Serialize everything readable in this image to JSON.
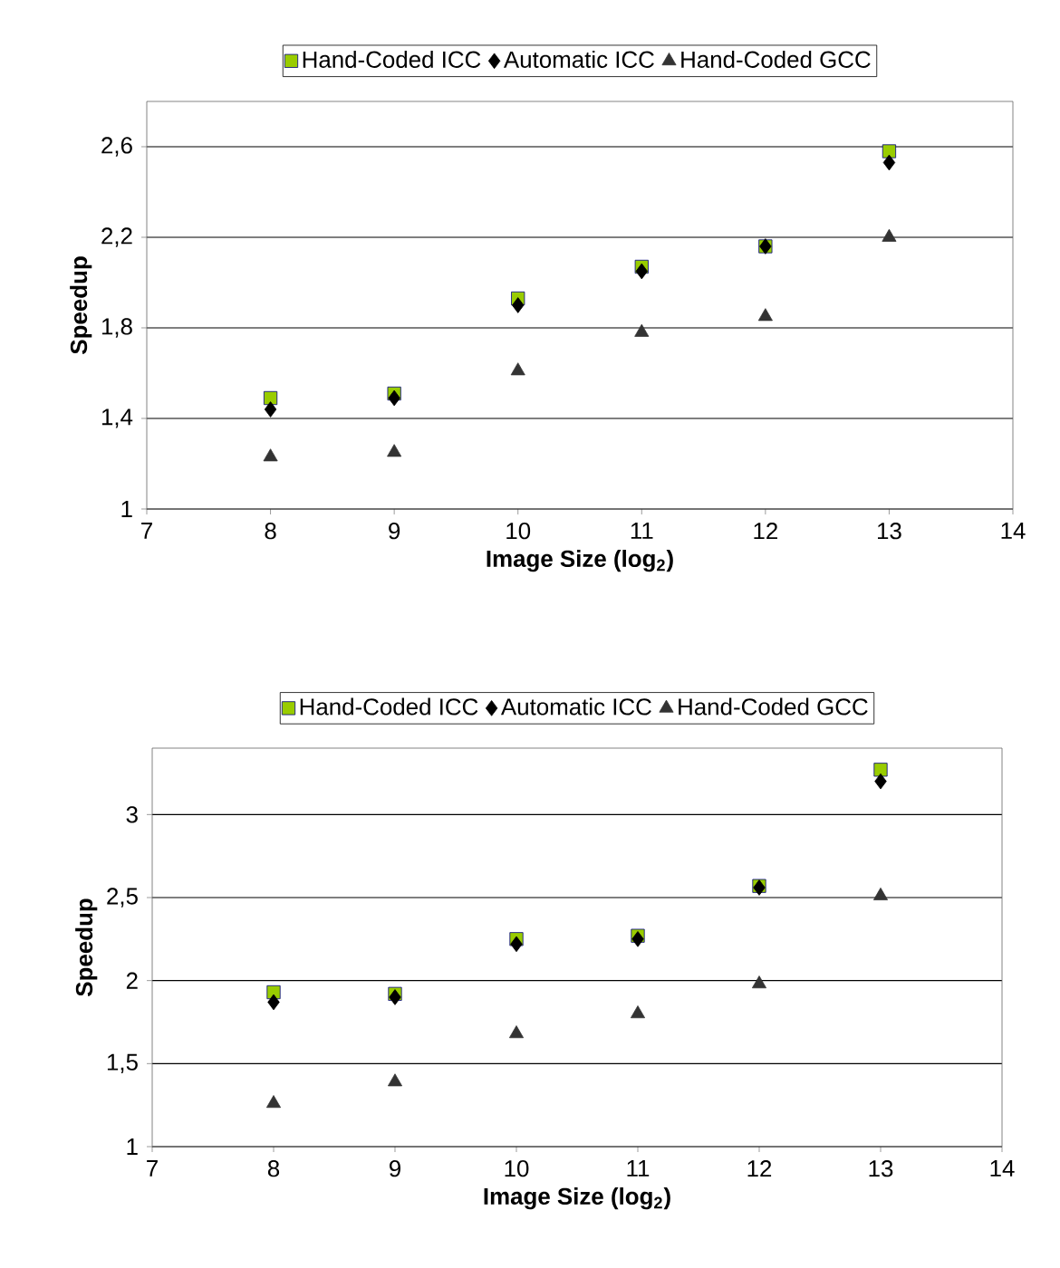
{
  "chart_data": [
    {
      "type": "scatter",
      "xlabel": "Image Size (log$_{2}$)",
      "ylabel": "Speedup",
      "xlim": [
        7,
        14
      ],
      "ylim": [
        1,
        2.8
      ],
      "xticks": [
        7,
        8,
        9,
        10,
        11,
        12,
        13,
        14
      ],
      "yticks": [
        1,
        {
          "value": 1.4,
          "label": "1,4"
        },
        {
          "value": 1.8,
          "label": "1,8"
        },
        {
          "value": 2.2,
          "label": "2,2"
        },
        {
          "value": 2.6,
          "label": "2,6"
        }
      ],
      "grid": "y",
      "legend": "top",
      "x": [
        8,
        9,
        10,
        11,
        12,
        13
      ],
      "series": [
        {
          "name": "Hand-Coded ICC",
          "color": "#99cc00",
          "marker": "square",
          "values": [
            1.49,
            1.51,
            1.93,
            2.07,
            2.16,
            2.58
          ]
        },
        {
          "name": "Automatic ICC",
          "color": "#000000",
          "marker": "diamond",
          "values": [
            1.44,
            1.49,
            1.9,
            2.05,
            2.16,
            2.53
          ]
        },
        {
          "name": "Hand-Coded GCC",
          "color": "#333333",
          "marker": "triangle",
          "values": [
            1.23,
            1.25,
            1.61,
            1.78,
            1.85,
            2.2
          ]
        }
      ]
    },
    {
      "type": "scatter",
      "xlabel": "Image Size (log$_{2}$)",
      "ylabel": "Speedup",
      "xlim": [
        7,
        14
      ],
      "ylim": [
        1,
        3.4
      ],
      "xticks": [
        7,
        8,
        9,
        10,
        11,
        12,
        13,
        14
      ],
      "yticks": [
        1,
        {
          "value": 1.5,
          "label": "1,5"
        },
        2,
        {
          "value": 2.5,
          "label": "2,5"
        },
        3
      ],
      "grid": "y",
      "legend": "top",
      "x": [
        8,
        9,
        10,
        11,
        12,
        13
      ],
      "series": [
        {
          "name": "Hand-Coded ICC",
          "color": "#99cc00",
          "marker": "square",
          "values": [
            1.93,
            1.92,
            2.25,
            2.27,
            2.57,
            3.27
          ]
        },
        {
          "name": "Automatic ICC",
          "color": "#000000",
          "marker": "diamond",
          "values": [
            1.87,
            1.9,
            2.22,
            2.25,
            2.56,
            3.2
          ]
        },
        {
          "name": "Hand-Coded GCC",
          "color": "#333333",
          "marker": "triangle",
          "values": [
            1.26,
            1.39,
            1.68,
            1.8,
            1.98,
            2.51
          ]
        }
      ]
    }
  ]
}
